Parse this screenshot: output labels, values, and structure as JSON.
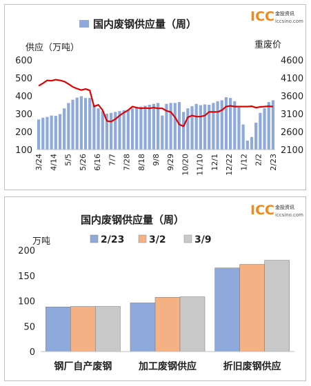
{
  "logo": {
    "mark": "ICC",
    "name": "金投资讯",
    "url": "iccsino.com"
  },
  "chart_data": [
    {
      "type": "bar",
      "title": "国内废钢供应量（周）",
      "ylabel": "供应（万吨）",
      "y2label": "重废价",
      "ylim": [
        100,
        600
      ],
      "y2lim": [
        2100,
        4600
      ],
      "yticks": [
        "600",
        "500",
        "400",
        "300",
        "200",
        "100"
      ],
      "y2ticks": [
        "4600",
        "4100",
        "3600",
        "3100",
        "2600",
        "2100"
      ],
      "xticks": [
        "3/24",
        "4/14",
        "5/5",
        "5/26",
        "6/16",
        "7/7",
        "7/28",
        "8/18",
        "9/8",
        "9/29",
        "10/20",
        "11/10",
        "12/1",
        "12/22",
        "1/12",
        "2/2",
        "2/23"
      ],
      "legend": "top",
      "grid": false,
      "series": [
        {
          "name": "国内废钢供应量（周）",
          "type": "bar",
          "color": "#8ea9db",
          "values": [
            268,
            278,
            282,
            290,
            288,
            298,
            330,
            360,
            378,
            390,
            398,
            388,
            388,
            350,
            330,
            315,
            300,
            305,
            310,
            315,
            320,
            322,
            330,
            338,
            340,
            345,
            350,
            355,
            360,
            290,
            355,
            360,
            360,
            365,
            310,
            330,
            342,
            355,
            348,
            352,
            350,
            360,
            370,
            375,
            392,
            388,
            370,
            335,
            240,
            150,
            170,
            250,
            305,
            330,
            365,
            375
          ]
        },
        {
          "name": "重废价",
          "type": "line",
          "axis": "right",
          "color": "#e00000",
          "values": [
            3880,
            3950,
            4030,
            4020,
            4050,
            4030,
            4000,
            3930,
            3850,
            3800,
            3760,
            3790,
            3750,
            3300,
            3350,
            3200,
            2900,
            2880,
            2950,
            3050,
            3130,
            3200,
            3300,
            3270,
            3250,
            3260,
            3250,
            3270,
            3250,
            3250,
            3180,
            3150,
            3000,
            2800,
            2750,
            3000,
            3050,
            3020,
            3020,
            3050,
            3150,
            3150,
            3150,
            3200,
            3300,
            3320,
            3300,
            3300,
            3300,
            3300,
            3310,
            3270,
            3290,
            3300,
            3310,
            3300
          ]
        }
      ]
    },
    {
      "type": "bar",
      "title": "国内废钢供应量（周）",
      "ylabel": "万吨",
      "ylim": [
        0,
        200
      ],
      "yticks": [
        "200",
        "150",
        "100",
        "50",
        "0"
      ],
      "categories": [
        "钢厂自产废钢",
        "加工废钢供应",
        "折旧废钢供应"
      ],
      "legend": "top",
      "grid": false,
      "series": [
        {
          "name": "2/23",
          "color": "#8ea9db",
          "values": [
            88,
            96,
            165
          ]
        },
        {
          "name": "3/2",
          "color": "#f4b183",
          "values": [
            89,
            107,
            172
          ]
        },
        {
          "name": "3/9",
          "color": "#c9c9c9",
          "values": [
            89,
            108,
            180
          ]
        }
      ]
    }
  ]
}
